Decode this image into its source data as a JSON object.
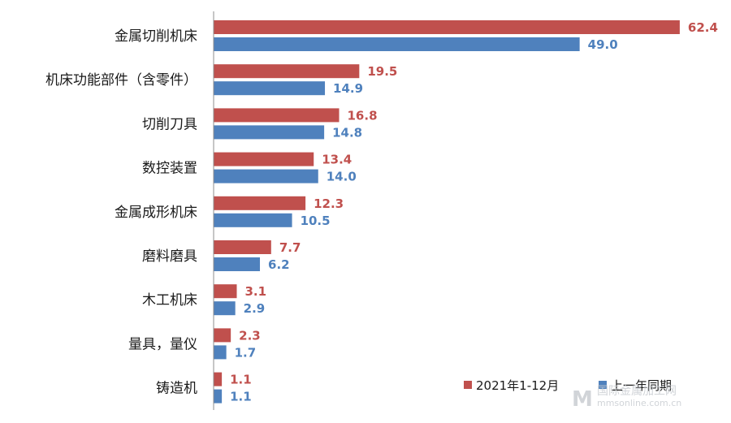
{
  "chart_data": {
    "type": "bar",
    "orientation": "horizontal",
    "categories": [
      "金属切削机床",
      "机床功能部件（含零件）",
      "切削刀具",
      "数控装置",
      "金属成形机床",
      "磨料磨具",
      "木工机床",
      "量具，量仪",
      "铸造机"
    ],
    "series": [
      {
        "name": "2021年1-12月",
        "color": "#C0504D",
        "values": [
          62.4,
          19.5,
          16.8,
          13.4,
          12.3,
          7.7,
          3.1,
          2.3,
          1.1
        ]
      },
      {
        "name": "上一年同期",
        "color": "#4F81BD",
        "values": [
          49.0,
          14.9,
          14.8,
          14.0,
          10.5,
          6.2,
          2.9,
          1.7,
          1.1
        ]
      }
    ],
    "xlim": [
      0,
      66
    ],
    "grid": false,
    "legend_position": "bottom-right",
    "value_labels": true
  },
  "watermark": {
    "line1": "国际金属加工网",
    "line2": "mmsonline.com.cn"
  }
}
